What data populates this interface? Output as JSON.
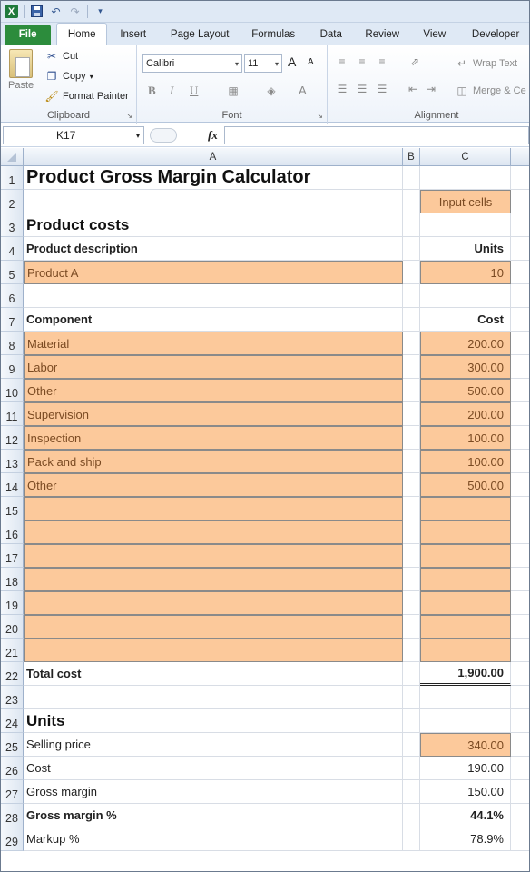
{
  "app": {
    "logo": "X"
  },
  "qat": {
    "icons": [
      "save-icon",
      "undo-icon",
      "redo-icon",
      "customize-icon"
    ]
  },
  "tabs": [
    {
      "label": "File"
    },
    {
      "label": "Home"
    },
    {
      "label": "Insert"
    },
    {
      "label": "Page Layout"
    },
    {
      "label": "Formulas"
    },
    {
      "label": "Data"
    },
    {
      "label": "Review"
    },
    {
      "label": "View"
    },
    {
      "label": "Developer"
    }
  ],
  "ribbon": {
    "clipboard": {
      "label": "Clipboard",
      "paste": "Paste",
      "cut": "Cut",
      "copy": "Copy",
      "format_painter": "Format Painter"
    },
    "font": {
      "label": "Font",
      "family": "Calibri",
      "size": "11",
      "grow": "A",
      "shrink": "A",
      "bold": "B",
      "italic": "I",
      "underline": "U",
      "font_color": "A"
    },
    "alignment": {
      "label": "Alignment",
      "wrap_text": "Wrap Text",
      "merge": "Merge & Ce"
    }
  },
  "formula_bar": {
    "name_box": "K17",
    "fx": "fx",
    "formula": ""
  },
  "columns": [
    {
      "label": "A"
    },
    {
      "label": "B"
    },
    {
      "label": "C"
    }
  ],
  "rows": [
    {
      "n": "1",
      "a": "Product Gross Margin Calculator",
      "c": ""
    },
    {
      "n": "2",
      "a": "",
      "c": "Input cells"
    },
    {
      "n": "3",
      "a": "Product costs",
      "c": ""
    },
    {
      "n": "4",
      "a": "Product description",
      "c": "Units"
    },
    {
      "n": "5",
      "a": "Product A",
      "c": "10"
    },
    {
      "n": "6",
      "a": "",
      "c": ""
    },
    {
      "n": "7",
      "a": "Component",
      "c": "Cost"
    },
    {
      "n": "8",
      "a": "Material",
      "c": "200.00"
    },
    {
      "n": "9",
      "a": "Labor",
      "c": "300.00"
    },
    {
      "n": "10",
      "a": "Other",
      "c": "500.00"
    },
    {
      "n": "11",
      "a": "Supervision",
      "c": "200.00"
    },
    {
      "n": "12",
      "a": "Inspection",
      "c": "100.00"
    },
    {
      "n": "13",
      "a": "Pack and ship",
      "c": "100.00"
    },
    {
      "n": "14",
      "a": "Other",
      "c": "500.00"
    },
    {
      "n": "15",
      "a": "",
      "c": ""
    },
    {
      "n": "16",
      "a": "",
      "c": ""
    },
    {
      "n": "17",
      "a": "",
      "c": ""
    },
    {
      "n": "18",
      "a": "",
      "c": ""
    },
    {
      "n": "19",
      "a": "",
      "c": ""
    },
    {
      "n": "20",
      "a": "",
      "c": ""
    },
    {
      "n": "21",
      "a": "",
      "c": ""
    },
    {
      "n": "22",
      "a": "Total cost",
      "c": "1,900.00"
    },
    {
      "n": "23",
      "a": "",
      "c": ""
    },
    {
      "n": "24",
      "a": "Units",
      "c": ""
    },
    {
      "n": "25",
      "a": "Selling price",
      "c": "340.00"
    },
    {
      "n": "26",
      "a": "Cost",
      "c": "190.00"
    },
    {
      "n": "27",
      "a": "Gross margin",
      "c": "150.00"
    },
    {
      "n": "28",
      "a": "Gross margin %",
      "c": "44.1%"
    },
    {
      "n": "29",
      "a": "Markup %",
      "c": "78.9%"
    }
  ],
  "colors": {
    "input_fill": "#fcc99b",
    "file_tab": "#2c8c3c",
    "ribbon_bg": "#dfe9f5"
  }
}
